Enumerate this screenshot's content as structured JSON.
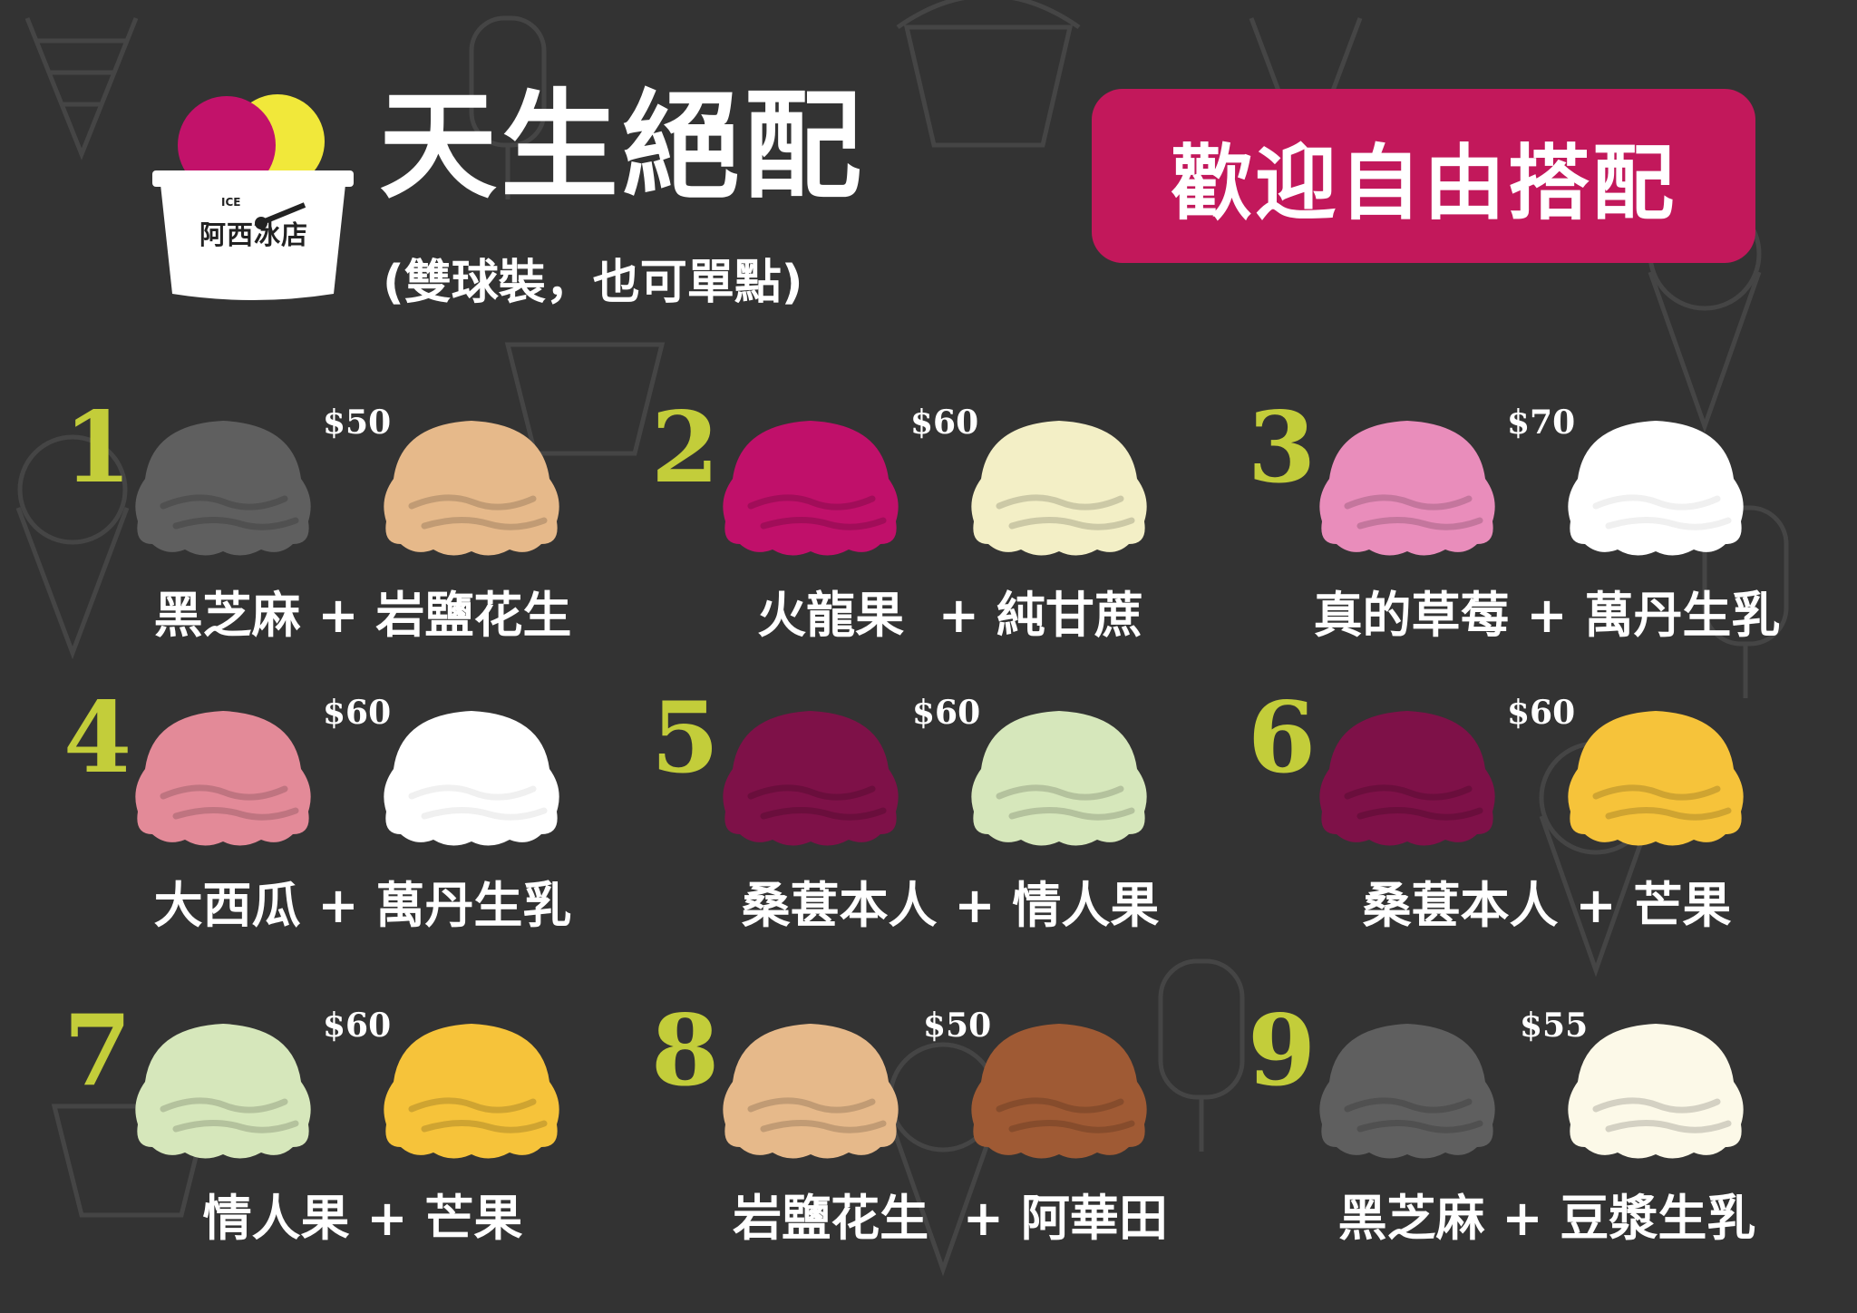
{
  "header": {
    "logo_text": "阿西冰店",
    "logo_ice": "ICE",
    "title": "天生絕配",
    "subtitle": "(雙球裝，也可單點)",
    "welcome_badge": "歡迎自由搭配",
    "logo_scoop_colors": [
      "#c2126a",
      "#f1e83a"
    ]
  },
  "combos": [
    {
      "number": "1",
      "price": "$50",
      "name": "黑芝麻 + 岩鹽花生",
      "colors": [
        "#5f5f5f",
        "#e6b98a"
      ]
    },
    {
      "number": "2",
      "price": "$60",
      "name": "火龍果  + 純甘蔗",
      "colors": [
        "#c0106a",
        "#f3efc6"
      ]
    },
    {
      "number": "3",
      "price": "$70",
      "name": "真的草莓 + 萬丹生乳",
      "colors": [
        "#e98dbb",
        "#ffffff"
      ]
    },
    {
      "number": "4",
      "price": "$60",
      "name": "大西瓜 + 萬丹生乳",
      "colors": [
        "#e38a98",
        "#ffffff"
      ]
    },
    {
      "number": "5",
      "price": "$60",
      "name": "桑葚本人 + 情人果",
      "colors": [
        "#7e1148",
        "#d6e7bb"
      ]
    },
    {
      "number": "6",
      "price": "$60",
      "name": "桑葚本人 + 芒果",
      "colors": [
        "#7e1148",
        "#f6c33a"
      ]
    },
    {
      "number": "7",
      "price": "$60",
      "name": "情人果 + 芒果",
      "colors": [
        "#d6e7bb",
        "#f6c33a"
      ]
    },
    {
      "number": "8",
      "price": "$50",
      "name": "岩鹽花生  + 阿華田",
      "colors": [
        "#e6b98a",
        "#9f5a34"
      ]
    },
    {
      "number": "9",
      "price": "$55",
      "name": "黑芝麻 + 豆漿生乳",
      "colors": [
        "#5f5f5f",
        "#fcf9e8"
      ]
    }
  ]
}
